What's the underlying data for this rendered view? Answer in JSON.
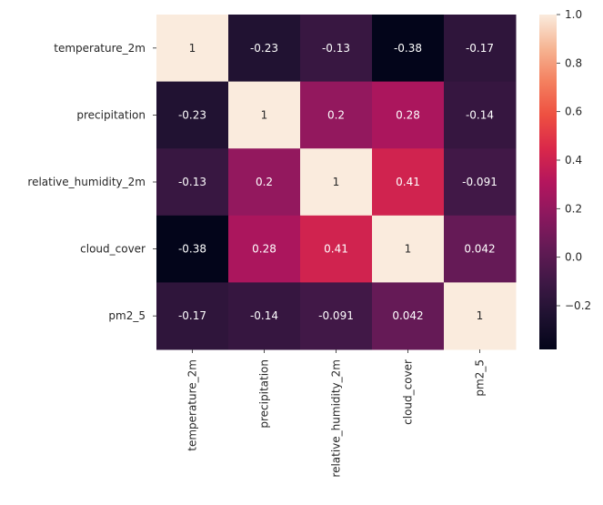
{
  "chart_data": {
    "type": "heatmap",
    "title": "",
    "xlabel": "",
    "ylabel": "",
    "labels": [
      "temperature_2m",
      "precipitation",
      "relative_humidity_2m",
      "cloud_cover",
      "pm2_5"
    ],
    "matrix": [
      [
        1,
        -0.23,
        -0.13,
        -0.38,
        -0.17
      ],
      [
        -0.23,
        1,
        0.2,
        0.28,
        -0.14
      ],
      [
        -0.13,
        0.2,
        1,
        0.41,
        -0.091
      ],
      [
        -0.38,
        0.28,
        0.41,
        1,
        0.042
      ],
      [
        -0.17,
        -0.14,
        -0.091,
        0.042,
        1
      ]
    ],
    "cell_text": [
      [
        "1",
        "-0.23",
        "-0.13",
        "-0.38",
        "-0.17"
      ],
      [
        "-0.23",
        "1",
        "0.2",
        "0.28",
        "-0.14"
      ],
      [
        "-0.13",
        "0.2",
        "1",
        "0.41",
        "-0.091"
      ],
      [
        "-0.38",
        "0.28",
        "0.41",
        "1",
        "0.042"
      ],
      [
        "-0.17",
        "-0.14",
        "-0.091",
        "0.042",
        "1"
      ]
    ],
    "colorbar": {
      "colormap": "rocket",
      "vmin": -0.38,
      "vmax": 1.0,
      "ticks": [
        1.0,
        0.8,
        0.6,
        0.4,
        0.2,
        0.0,
        -0.2
      ],
      "tick_labels": [
        "1.0",
        "0.8",
        "0.6",
        "0.4",
        "0.2",
        "0.0",
        "−0.2"
      ]
    },
    "annotations": true,
    "grid": false
  }
}
